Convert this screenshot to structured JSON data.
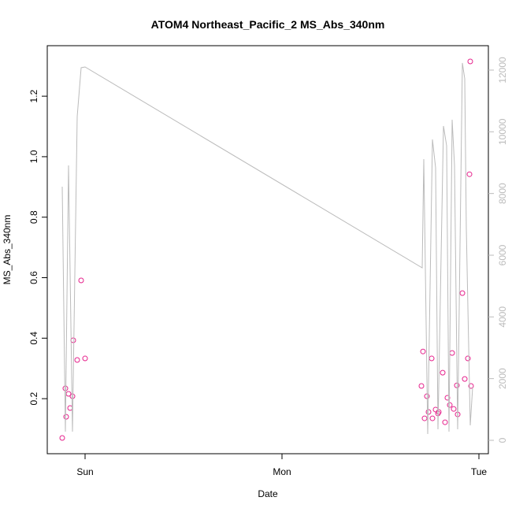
{
  "chart_data": {
    "type": "scatter-line",
    "title": "ATOM4 Northeast_Pacific_2 MS_Abs_340nm",
    "xlabel": "Date",
    "ylabel": "MS_Abs_340nm",
    "xlim": [
      -0.192,
      2.048
    ],
    "xticks": [
      {
        "value": 0,
        "label": "Sun"
      },
      {
        "value": 1,
        "label": "Mon"
      },
      {
        "value": 2,
        "label": "Tue"
      }
    ],
    "ylim": [
      0.018,
      1.367
    ],
    "yticks": [
      0.2,
      0.4,
      0.6,
      0.8,
      {
        "value": 1,
        "label": "1.0"
      },
      1.2
    ],
    "y2lim": [
      -434,
      12791
    ],
    "y2ticks": [
      0,
      2000,
      4000,
      6000,
      8000,
      10000,
      12000
    ],
    "y2color": "#bbbbbb",
    "series": [
      {
        "kind": "points",
        "color": "#e6228c",
        "x": [
          -0.116,
          -0.1,
          -0.096,
          -0.084,
          -0.076,
          -0.064,
          -0.06,
          -0.04,
          -0.02,
          0.0,
          1.708,
          1.716,
          1.724,
          1.736,
          1.744,
          1.76,
          1.764,
          1.78,
          1.792,
          1.796,
          1.816,
          1.828,
          1.84,
          1.852,
          1.864,
          1.872,
          1.888,
          1.892,
          1.916,
          1.928,
          1.944,
          1.952,
          1.956,
          1.96
        ],
        "values": [
          0.07,
          0.234,
          0.14,
          0.216,
          0.169,
          0.208,
          0.393,
          0.328,
          0.591,
          0.333,
          0.242,
          0.356,
          0.135,
          0.208,
          0.156,
          0.333,
          0.135,
          0.164,
          0.151,
          0.156,
          0.286,
          0.122,
          0.203,
          0.179,
          0.351,
          0.166,
          0.244,
          0.148,
          0.549,
          0.265,
          0.333,
          0.942,
          1.315,
          0.242
        ]
      },
      {
        "kind": "line",
        "color": "#bbbbbb",
        "axis": "y2",
        "x": [
          -0.116,
          -0.1,
          -0.084,
          -0.064,
          -0.04,
          -0.02,
          0.0,
          1.712,
          1.72,
          1.74,
          1.764,
          1.78,
          1.792,
          1.82,
          1.836,
          1.848,
          1.864,
          1.876,
          1.892,
          1.916,
          1.928,
          1.936,
          1.956,
          1.968
        ],
        "values": [
          8221,
          281,
          8911,
          281,
          10494,
          12077,
          12102,
          5591,
          9115,
          204,
          9753,
          8834,
          357,
          10187,
          9549,
          281,
          10391,
          8911,
          357,
          12230,
          11719,
          6868,
          485,
          1711
        ]
      }
    ]
  }
}
